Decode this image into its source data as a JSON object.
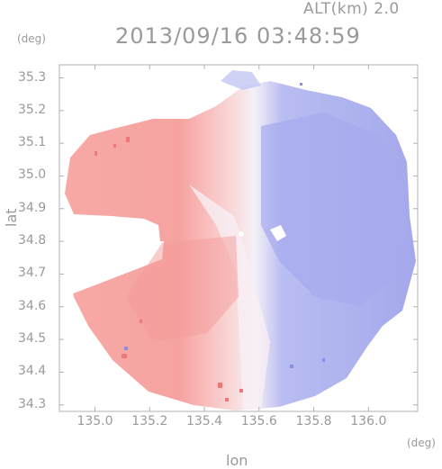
{
  "header": {
    "altitude": "ALT(km) 2.0",
    "timestamp": "2013/09/16 03:48:59",
    "y_unit": "(deg)",
    "x_unit": "(deg)"
  },
  "axes": {
    "xlabel": "lon",
    "ylabel": "lat",
    "x_ticks": [
      "135.0",
      "135.2",
      "135.4",
      "135.6",
      "135.8",
      "136.0"
    ],
    "y_ticks": [
      "35.3",
      "35.2",
      "35.1",
      "35.0",
      "34.9",
      "34.8",
      "34.7",
      "34.6",
      "34.5",
      "34.4",
      "34.3"
    ],
    "xlim": [
      134.87,
      136.18
    ],
    "ylim": [
      34.28,
      35.34
    ]
  },
  "map": {
    "type": "doppler-velocity",
    "radar_center": {
      "lon": 135.52,
      "lat": 34.81
    },
    "colors": {
      "toward": "#f2a0a0",
      "away": "#a4a8ec",
      "neutral": "#fbf3f5"
    }
  }
}
